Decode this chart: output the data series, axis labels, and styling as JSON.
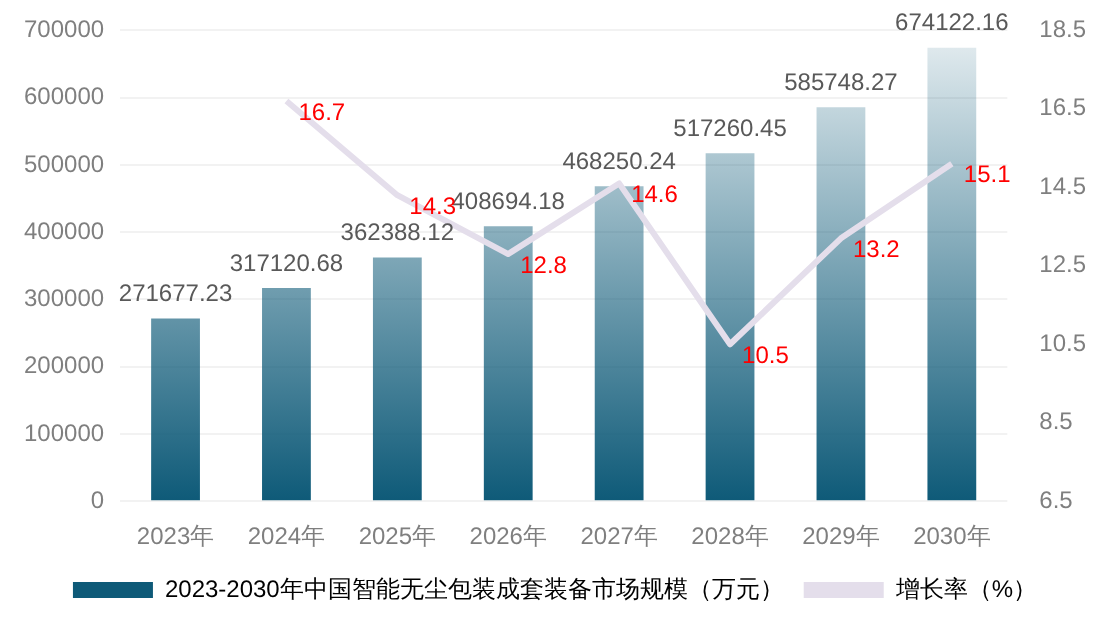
{
  "chart_data": {
    "type": "bar",
    "categories": [
      "2023年",
      "2024年",
      "2025年",
      "2026年",
      "2027年",
      "2028年",
      "2029年",
      "2030年"
    ],
    "series": [
      {
        "name": "2023-2030年中国智能无尘包装成套装备市场规模（万元）",
        "color": "#0e5a78",
        "values": [
          271677.23,
          317120.68,
          362388.12,
          408694.18,
          468250.24,
          517260.45,
          585748.27,
          674122.16
        ]
      },
      {
        "name": "增长率（%）",
        "type": "line",
        "axis": "y2",
        "color": "#e4deeb",
        "values": [
          null,
          16.7,
          14.3,
          12.8,
          14.6,
          10.5,
          13.2,
          15.1
        ]
      }
    ],
    "ylim": [
      0,
      700000
    ],
    "yticks": [
      0,
      100000,
      200000,
      300000,
      400000,
      500000,
      600000,
      700000
    ],
    "y2lim": [
      6.5,
      18.5
    ],
    "y2ticks": [
      6.5,
      8.5,
      10.5,
      12.5,
      14.5,
      16.5,
      18.5
    ],
    "grid": "y",
    "legend": "bottom",
    "data_labels": true,
    "marker": "none"
  }
}
